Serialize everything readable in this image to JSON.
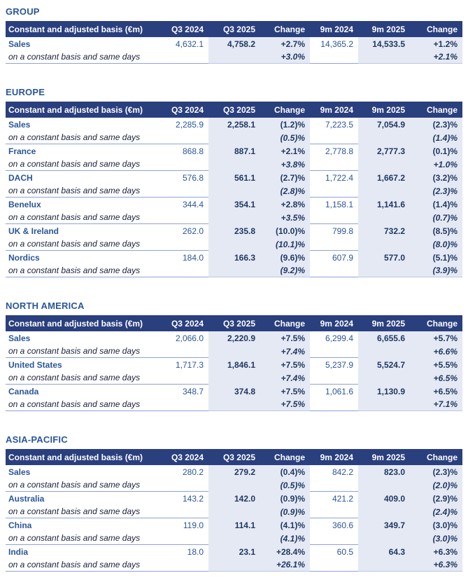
{
  "colors": {
    "header_bg": "#2A3F7E",
    "header_text": "#FFFFFF",
    "title_blue": "#2A5699",
    "value_navy": "#1F3864",
    "shaded_column_bg": "#E5E9F4",
    "row_underline": "#8FA2D4"
  },
  "table_header": [
    "Constant and adjusted basis (€m)",
    "Q3 2024",
    "Q3 2025",
    "Change",
    "9m 2024",
    "9m 2025",
    "Change"
  ],
  "subrow_label": "on a constant basis and same days",
  "sections": [
    {
      "title": "GROUP",
      "rows": [
        {
          "label": "Sales",
          "q3_2024": "4,632.1",
          "q3_2025": "4,758.2",
          "change_q3": "+2.7%",
          "m9_2024": "14,365.2",
          "m9_2025": "14,533.5",
          "change_9m": "+1.2%",
          "sub_change_q3": "+3.0%",
          "sub_change_9m": "+2.1%"
        }
      ]
    },
    {
      "title": "EUROPE",
      "rows": [
        {
          "label": "Sales",
          "q3_2024": "2,285.9",
          "q3_2025": "2,258.1",
          "change_q3": "(1.2)%",
          "m9_2024": "7,223.5",
          "m9_2025": "7,054.9",
          "change_9m": "(2.3)%",
          "sub_change_q3": "(0.5)%",
          "sub_change_9m": "(1.4)%"
        },
        {
          "label": "France",
          "q3_2024": "868.8",
          "q3_2025": "887.1",
          "change_q3": "+2.1%",
          "m9_2024": "2,778.8",
          "m9_2025": "2,777.3",
          "change_9m": "(0.1)%",
          "sub_change_q3": "+3.8%",
          "sub_change_9m": "+1.0%"
        },
        {
          "label": "DACH",
          "q3_2024": "576.8",
          "q3_2025": "561.1",
          "change_q3": "(2.7)%",
          "m9_2024": "1,722.4",
          "m9_2025": "1,667.2",
          "change_9m": "(3.2)%",
          "sub_change_q3": "(2.8)%",
          "sub_change_9m": "(2.3)%"
        },
        {
          "label": "Benelux",
          "q3_2024": "344.4",
          "q3_2025": "354.1",
          "change_q3": "+2.8%",
          "m9_2024": "1,158.1",
          "m9_2025": "1,141.6",
          "change_9m": "(1.4)%",
          "sub_change_q3": "+3.5%",
          "sub_change_9m": "(0.7)%"
        },
        {
          "label": "UK & Ireland",
          "q3_2024": "262.0",
          "q3_2025": "235.8",
          "change_q3": "(10.0)%",
          "m9_2024": "799.8",
          "m9_2025": "732.2",
          "change_9m": "(8.5)%",
          "sub_change_q3": "(10.1)%",
          "sub_change_9m": "(8.0)%"
        },
        {
          "label": "Nordics",
          "q3_2024": "184.0",
          "q3_2025": "166.3",
          "change_q3": "(9.6)%",
          "m9_2024": "607.9",
          "m9_2025": "577.0",
          "change_9m": "(5.1)%",
          "sub_change_q3": "(9.2)%",
          "sub_change_9m": "(3.9)%"
        }
      ]
    },
    {
      "title": "NORTH AMERICA",
      "rows": [
        {
          "label": "Sales",
          "q3_2024": "2,066.0",
          "q3_2025": "2,220.9",
          "change_q3": "+7.5%",
          "m9_2024": "6,299.4",
          "m9_2025": "6,655.6",
          "change_9m": "+5.7%",
          "sub_change_q3": "+7.4%",
          "sub_change_9m": "+6.6%"
        },
        {
          "label": "United States",
          "q3_2024": "1,717.3",
          "q3_2025": "1,846.1",
          "change_q3": "+7.5%",
          "m9_2024": "5,237.9",
          "m9_2025": "5,524.7",
          "change_9m": "+5.5%",
          "sub_change_q3": "+7.4%",
          "sub_change_9m": "+6.5%"
        },
        {
          "label": "Canada",
          "q3_2024": "348.7",
          "q3_2025": "374.8",
          "change_q3": "+7.5%",
          "m9_2024": "1,061.6",
          "m9_2025": "1,130.9",
          "change_9m": "+6.5%",
          "sub_change_q3": "+7.5%",
          "sub_change_9m": "+7.1%"
        }
      ]
    },
    {
      "title": "ASIA-PACIFIC",
      "rows": [
        {
          "label": "Sales",
          "q3_2024": "280.2",
          "q3_2025": "279.2",
          "change_q3": "(0.4)%",
          "m9_2024": "842.2",
          "m9_2025": "823.0",
          "change_9m": "(2.3)%",
          "sub_change_q3": "(0.5)%",
          "sub_change_9m": "(2.0)%"
        },
        {
          "label": "Australia",
          "q3_2024": "143.2",
          "q3_2025": "142.0",
          "change_q3": "(0.9)%",
          "m9_2024": "421.2",
          "m9_2025": "409.0",
          "change_9m": "(2.9)%",
          "sub_change_q3": "(0.9)%",
          "sub_change_9m": "(2.4)%"
        },
        {
          "label": "China",
          "q3_2024": "119.0",
          "q3_2025": "114.1",
          "change_q3": "(4.1)%",
          "m9_2024": "360.6",
          "m9_2025": "349.7",
          "change_9m": "(3.0)%",
          "sub_change_q3": "(4.1)%",
          "sub_change_9m": "(3.0)%"
        },
        {
          "label": "India",
          "q3_2024": "18.0",
          "q3_2025": "23.1",
          "change_q3": "+28.4%",
          "m9_2024": "60.5",
          "m9_2025": "64.3",
          "change_9m": "+6.3%",
          "sub_change_q3": "+26.1%",
          "sub_change_9m": "+6.3%"
        }
      ]
    }
  ]
}
